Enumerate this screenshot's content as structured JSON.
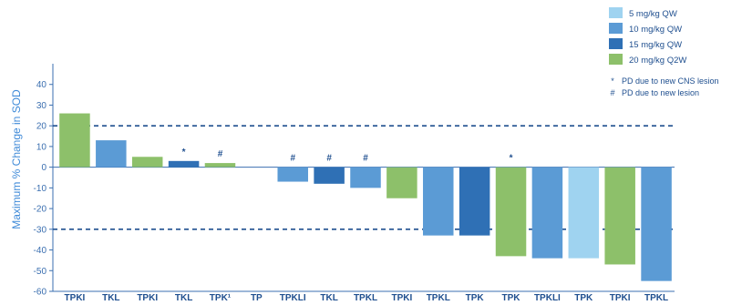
{
  "chart_data": {
    "type": "bar",
    "ylabel": "Maximum % Change in SOD",
    "ylim": [
      -60,
      50
    ],
    "yticks": [
      40,
      30,
      20,
      10,
      0,
      -10,
      -20,
      -30,
      -40,
      -50,
      -60
    ],
    "reference_lines": [
      20,
      -30
    ],
    "categories": [
      "TPKI",
      "TKL",
      "TPKI",
      "TKL",
      "TPK¹",
      "TP",
      "TPKLI",
      "TKL",
      "TPKL",
      "TPKI",
      "TPKL",
      "TPK",
      "TPK",
      "TPKLI",
      "TPK",
      "TPKI",
      "TPKL"
    ],
    "values": [
      26,
      13,
      5,
      3,
      2,
      0,
      -7,
      -8,
      -10,
      -15,
      -33,
      -33,
      -43,
      -44,
      -44,
      -47,
      -55
    ],
    "dose_group": [
      "20 mg/kg Q2W",
      "10 mg/kg QW",
      "20 mg/kg Q2W",
      "15 mg/kg QW",
      "20 mg/kg Q2W",
      "20 mg/kg Q2W",
      "10 mg/kg QW",
      "15 mg/kg QW",
      "10 mg/kg QW",
      "20 mg/kg Q2W",
      "10 mg/kg QW",
      "15 mg/kg QW",
      "20 mg/kg Q2W",
      "10 mg/kg QW",
      "5 mg/kg QW",
      "20 mg/kg Q2W",
      "10 mg/kg QW"
    ],
    "markers": [
      "",
      "",
      "",
      "*",
      "#",
      "",
      "#",
      "#",
      "#",
      "",
      "",
      "",
      "*",
      "",
      "",
      "",
      ""
    ],
    "series": [
      {
        "name": "5 mg/kg QW",
        "color": "#9fd3f0"
      },
      {
        "name": "10 mg/kg QW",
        "color": "#5b9bd5"
      },
      {
        "name": "15 mg/kg QW",
        "color": "#2f70b5"
      },
      {
        "name": "20 mg/kg Q2W",
        "color": "#8dc06a"
      }
    ],
    "legend_position": "top-right",
    "notes": [
      {
        "symbol": "*",
        "text": "PD due to new CNS lesion"
      },
      {
        "symbol": "#",
        "text": "PD due to new lesion"
      }
    ],
    "grid": false
  }
}
